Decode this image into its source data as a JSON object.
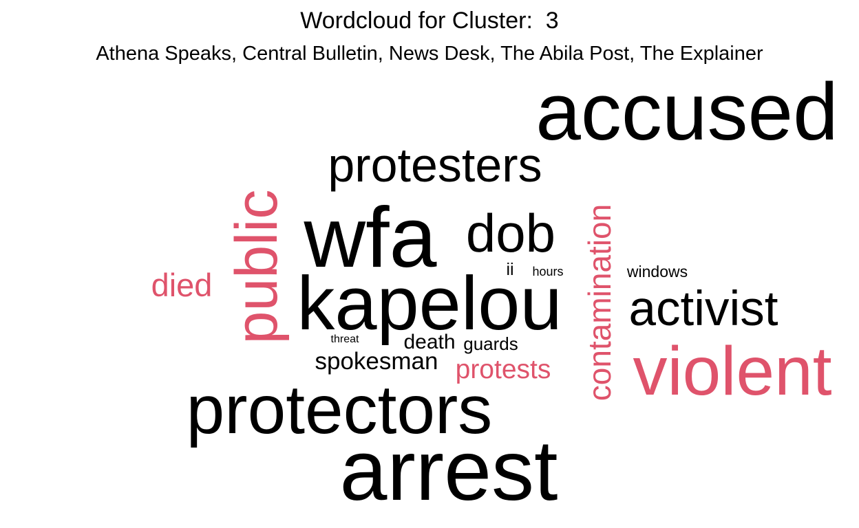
{
  "title": "Wordcloud for Cluster:  3",
  "subtitle": "Athena Speaks, Central Bulletin, News Desk, The Abila Post, The Explainer",
  "colors": {
    "primary": "#000000",
    "highlight": "#DF536B"
  },
  "words": [
    {
      "id": "accused",
      "text": "accused",
      "color": "primary"
    },
    {
      "id": "protesters",
      "text": "protesters",
      "color": "primary"
    },
    {
      "id": "wfa",
      "text": "wfa",
      "color": "primary"
    },
    {
      "id": "dob",
      "text": "dob",
      "color": "primary"
    },
    {
      "id": "public",
      "text": "public",
      "color": "highlight"
    },
    {
      "id": "contamination",
      "text": "contamination",
      "color": "highlight"
    },
    {
      "id": "died",
      "text": "died",
      "color": "highlight"
    },
    {
      "id": "ii",
      "text": "ii",
      "color": "primary"
    },
    {
      "id": "hours",
      "text": "hours",
      "color": "primary"
    },
    {
      "id": "windows",
      "text": "windows",
      "color": "primary"
    },
    {
      "id": "kapelou",
      "text": "kapelou",
      "color": "primary"
    },
    {
      "id": "activist",
      "text": "activist",
      "color": "primary"
    },
    {
      "id": "threat",
      "text": "threat",
      "color": "primary"
    },
    {
      "id": "death",
      "text": "death",
      "color": "primary"
    },
    {
      "id": "guards",
      "text": "guards",
      "color": "primary"
    },
    {
      "id": "spokesman",
      "text": "spokesman",
      "color": "primary"
    },
    {
      "id": "protests",
      "text": "protests",
      "color": "highlight"
    },
    {
      "id": "violent",
      "text": "violent",
      "color": "highlight"
    },
    {
      "id": "protectors",
      "text": "protectors",
      "color": "primary"
    },
    {
      "id": "arrest",
      "text": "arrest",
      "color": "primary"
    }
  ]
}
